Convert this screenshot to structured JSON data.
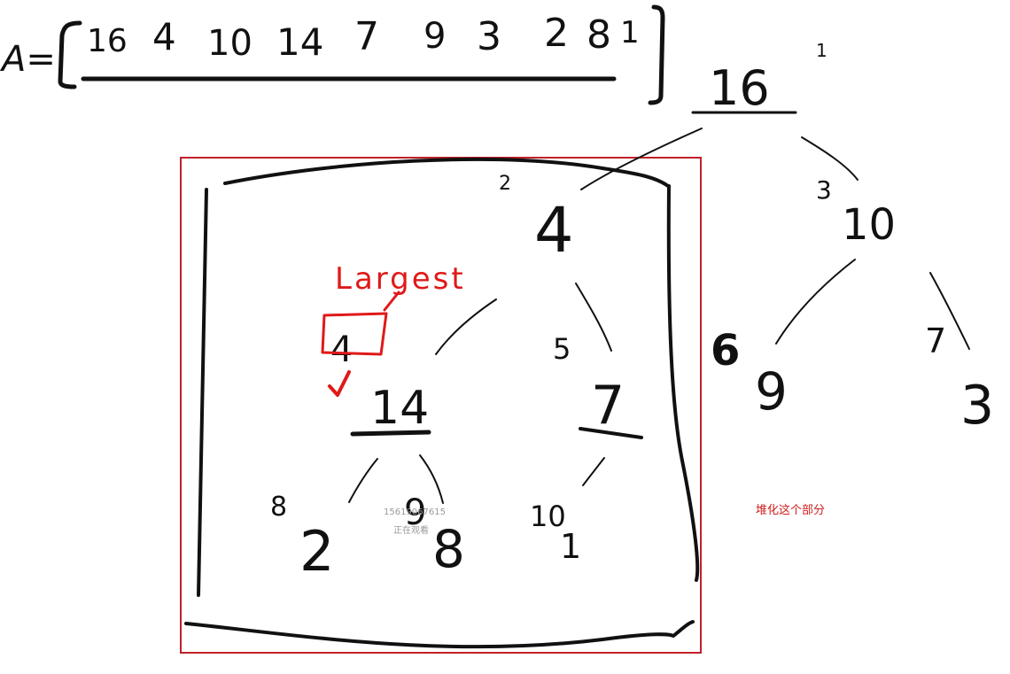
{
  "array": {
    "label": "A=",
    "values": [
      "16",
      "4",
      "10",
      "14",
      "7",
      "9",
      "3",
      "2",
      "8",
      "1"
    ]
  },
  "tree": {
    "nodes": [
      {
        "index": "1",
        "value": "16"
      },
      {
        "index": "2",
        "value": "4"
      },
      {
        "index": "3",
        "value": "10"
      },
      {
        "index": "4",
        "value": "14"
      },
      {
        "index": "5",
        "value": "7"
      },
      {
        "index": "6",
        "value": "9"
      },
      {
        "index": "7",
        "value": "3"
      },
      {
        "index": "8",
        "value": "2"
      },
      {
        "index": "9",
        "value": "8"
      },
      {
        "index": "10",
        "value": "1"
      }
    ]
  },
  "largest": {
    "label": "Largest",
    "boxed_index": "4"
  },
  "annotation": "堆化这个部分",
  "watermark": {
    "number": "15619067615",
    "text": "正在观看"
  },
  "colors": {
    "ink": "#111111",
    "red": "#e01919",
    "frame": "#c0202a"
  }
}
